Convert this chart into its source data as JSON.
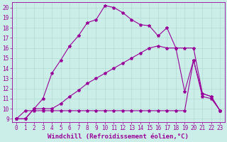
{
  "xlabel": "Windchill (Refroidissement éolien,°C)",
  "bg_color": "#cceee8",
  "line_color": "#990099",
  "xlim": [
    -0.5,
    23.5
  ],
  "ylim": [
    8.7,
    20.5
  ],
  "xticks": [
    0,
    1,
    2,
    3,
    4,
    5,
    6,
    7,
    8,
    9,
    10,
    11,
    12,
    13,
    14,
    15,
    16,
    17,
    18,
    19,
    20,
    21,
    22,
    23
  ],
  "yticks": [
    9,
    10,
    11,
    12,
    13,
    14,
    15,
    16,
    17,
    18,
    19,
    20
  ],
  "line1_x": [
    0,
    1,
    2,
    3,
    4,
    5,
    6,
    7,
    8,
    9,
    10,
    11,
    12,
    13,
    14,
    15,
    16,
    17,
    18,
    19,
    20,
    21,
    22,
    23
  ],
  "line1_y": [
    9.0,
    9.0,
    10.0,
    11.0,
    13.5,
    14.8,
    16.2,
    17.2,
    18.5,
    18.8,
    20.2,
    20.0,
    19.5,
    18.8,
    18.3,
    18.2,
    17.2,
    18.0,
    16.0,
    11.7,
    14.8,
    11.2,
    11.0,
    9.8
  ],
  "line2_x": [
    0,
    1,
    2,
    3,
    4,
    5,
    6,
    7,
    8,
    9,
    10,
    11,
    12,
    13,
    14,
    15,
    16,
    17,
    18,
    19,
    20,
    21,
    22,
    23
  ],
  "line2_y": [
    9.0,
    9.8,
    9.8,
    9.8,
    9.8,
    9.8,
    9.8,
    9.8,
    9.8,
    9.8,
    9.8,
    9.8,
    9.8,
    9.8,
    9.8,
    9.8,
    9.8,
    9.8,
    9.8,
    9.8,
    14.8,
    11.5,
    11.2,
    9.8
  ],
  "line3_x": [
    0,
    1,
    2,
    3,
    4,
    5,
    6,
    7,
    8,
    9,
    10,
    11,
    12,
    13,
    14,
    15,
    16,
    17,
    18,
    19,
    20,
    21,
    22,
    23
  ],
  "line3_y": [
    9.0,
    9.0,
    10.0,
    10.0,
    10.0,
    10.5,
    11.2,
    11.8,
    12.5,
    13.0,
    13.5,
    14.0,
    14.5,
    15.0,
    15.5,
    16.0,
    16.2,
    16.0,
    16.0,
    16.0,
    16.0,
    11.5,
    11.2,
    9.8
  ],
  "grid_color": "#aad8cc",
  "xlabel_fontsize": 6.5,
  "tick_fontsize": 5.5,
  "marker": "*",
  "markersize": 3,
  "linewidth": 0.8
}
